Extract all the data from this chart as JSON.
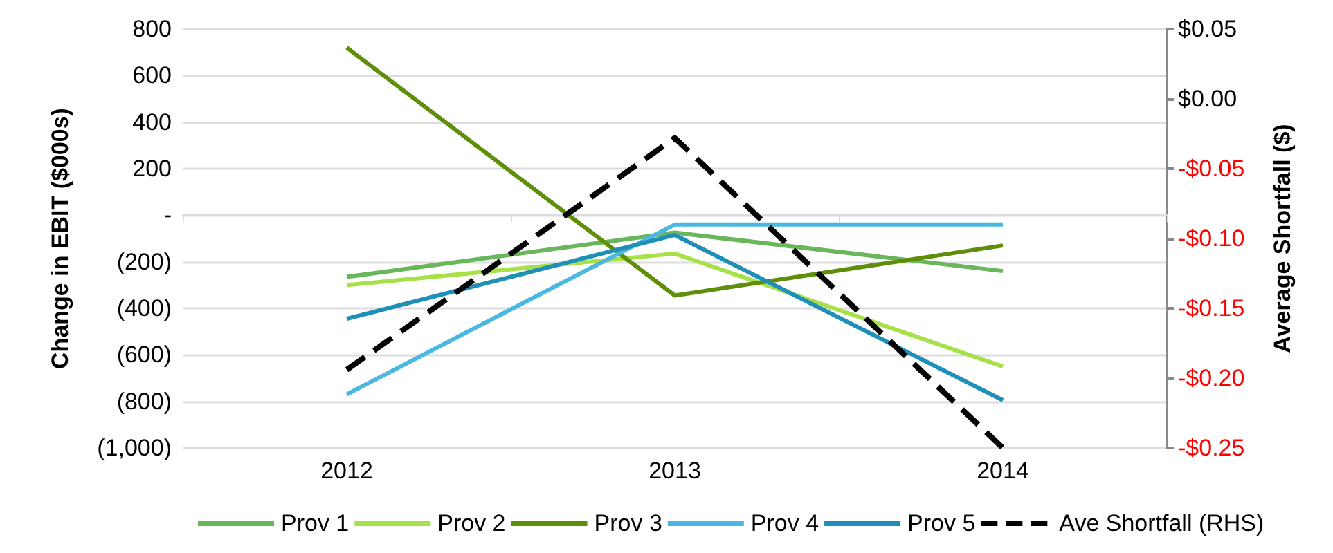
{
  "chart_data": {
    "type": "line",
    "ylabel": "Change in EBIT ($000s)",
    "y2label": "Average Shortfall ($)",
    "categories": [
      "2012",
      "2013",
      "2014"
    ],
    "series": [
      {
        "name": "Prov 1",
        "color": "#6ab65a",
        "values": [
          -265,
          -75,
          -240
        ]
      },
      {
        "name": "Prov 2",
        "color": "#a8e04a",
        "values": [
          -300,
          -165,
          -650
        ]
      },
      {
        "name": "Prov 3",
        "color": "#5e8e0a",
        "values": [
          720,
          -345,
          -130
        ]
      },
      {
        "name": "Prov 4",
        "color": "#4ab8e0",
        "values": [
          -770,
          -40,
          -40
        ]
      },
      {
        "name": "Prov 5",
        "color": "#1e90b8",
        "values": [
          -445,
          -85,
          -795
        ]
      },
      {
        "name": "Ave Shortfall (RHS)",
        "color": "#000000",
        "values": [
          -0.194,
          -0.028,
          -0.25
        ],
        "axis": "y2",
        "line_style": "dashed"
      }
    ],
    "ylim": [
      -1000,
      800
    ],
    "yticks": [
      {
        "value": -1000,
        "label": "(1,000)"
      },
      {
        "value": -800,
        "label": "(800)"
      },
      {
        "value": -600,
        "label": "(600)"
      },
      {
        "value": -400,
        "label": "(400)"
      },
      {
        "value": -200,
        "label": "(200)"
      },
      {
        "value": 0,
        "label": "-"
      },
      200,
      400,
      600,
      800
    ],
    "y2lim": [
      -0.25,
      0.05
    ],
    "y2ticks": [
      {
        "value": -0.25,
        "label": "-$0.25"
      },
      {
        "value": -0.2,
        "label": "-$0.20"
      },
      {
        "value": -0.15,
        "label": "-$0.15"
      },
      {
        "value": -0.1,
        "label": "-$0.10"
      },
      {
        "value": -0.05,
        "label": "-$0.05"
      },
      {
        "value": 0,
        "label": "$0.00"
      },
      {
        "value": 0.05,
        "label": "$0.05"
      }
    ],
    "grid": "y",
    "legend": "bottom",
    "marker": "none",
    "line_style": "solid"
  }
}
